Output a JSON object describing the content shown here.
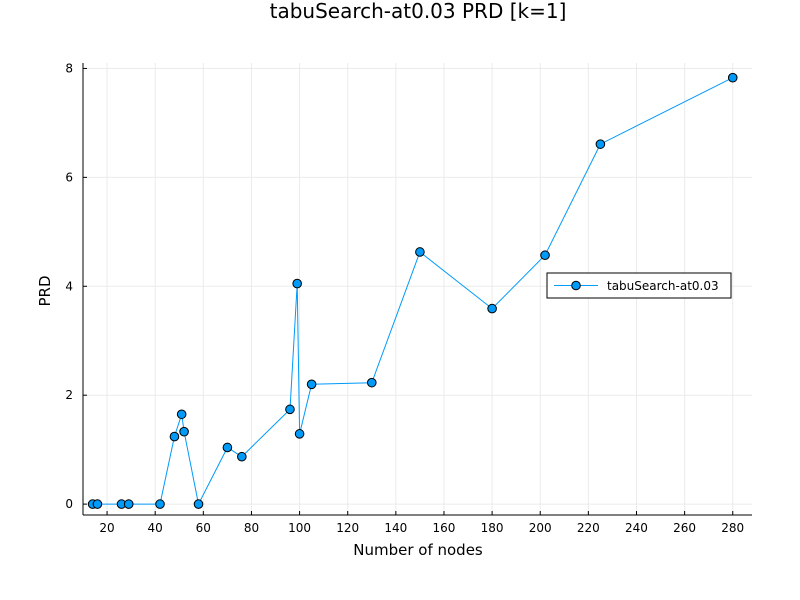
{
  "chart_data": {
    "type": "line",
    "title": "tabuSearch-at0.03 PRD [k=1]",
    "xlabel": "Number of nodes",
    "ylabel": "PRD",
    "xlim": [
      10,
      288
    ],
    "ylim": [
      -0.2,
      8.1
    ],
    "xticks": [
      20,
      40,
      60,
      80,
      100,
      120,
      140,
      160,
      180,
      200,
      220,
      240,
      260,
      280
    ],
    "yticks": [
      0,
      2,
      4,
      6,
      8
    ],
    "grid": true,
    "legend_position": "right",
    "colors": {
      "series": "#009AF9",
      "marker_edge": "#000000",
      "grid": "#EBEBEB",
      "axis": "#000000"
    },
    "series": [
      {
        "name": "tabuSearch-at0.03",
        "markers": true,
        "x": [
          14,
          16,
          26,
          29,
          42,
          48,
          51,
          52,
          58,
          70,
          76,
          96,
          99,
          100,
          105,
          130,
          150,
          180,
          202,
          225,
          280
        ],
        "y": [
          0,
          0,
          0,
          0,
          0,
          1.24,
          1.65,
          1.33,
          0,
          1.04,
          0.87,
          1.74,
          4.05,
          1.29,
          2.2,
          2.23,
          4.63,
          3.59,
          4.57,
          6.61,
          7.83
        ]
      }
    ]
  }
}
